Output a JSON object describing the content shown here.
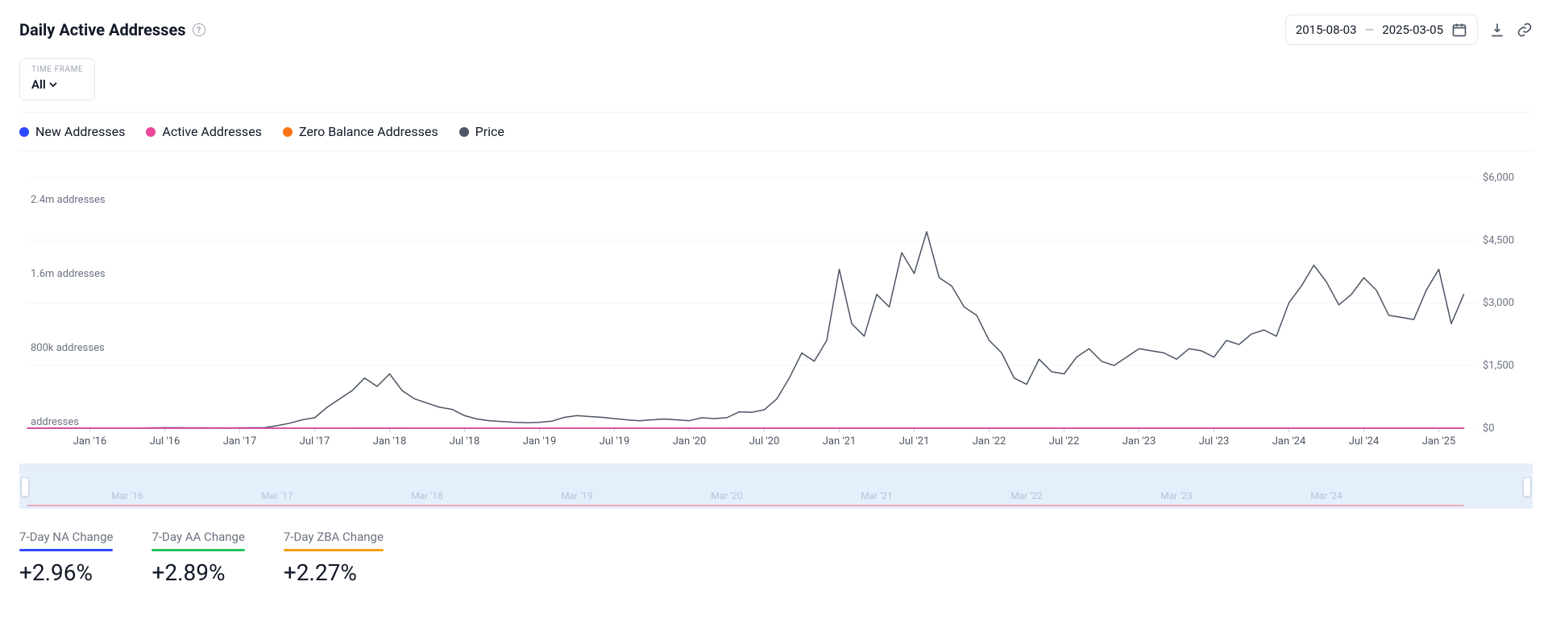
{
  "header": {
    "title": "Daily Active Addresses",
    "date_start": "2015-08-03",
    "date_end": "2025-03-05"
  },
  "timeframe": {
    "label": "TIME FRAME",
    "value": "All"
  },
  "legend": [
    {
      "label": "New Addresses",
      "color": "#2e49ff"
    },
    {
      "label": "Active Addresses",
      "color": "#ec4899"
    },
    {
      "label": "Zero Balance Addresses",
      "color": "#f97316"
    },
    {
      "label": "Price",
      "color": "#4b5563"
    }
  ],
  "chart": {
    "grid_color": "#f3f4f6",
    "axis_color": "#6b7280",
    "x_domain": [
      0,
      116
    ],
    "y_left": {
      "min": 0,
      "max": 2800000,
      "ticks": [
        {
          "v": 0,
          "label": "addresses"
        },
        {
          "v": 800000,
          "label": "800k addresses"
        },
        {
          "v": 1600000,
          "label": "1.6m addresses"
        },
        {
          "v": 2400000,
          "label": "2.4m addresses"
        }
      ]
    },
    "y_right": {
      "min": 0,
      "max": 6200,
      "ticks": [
        {
          "v": 0,
          "label": "$0"
        },
        {
          "v": 1500,
          "label": "$1,500"
        },
        {
          "v": 3000,
          "label": "$3,000"
        },
        {
          "v": 4500,
          "label": "$4,500"
        },
        {
          "v": 6000,
          "label": "$6,000"
        }
      ]
    },
    "x_ticks": [
      {
        "i": 5,
        "label": "Jan '16"
      },
      {
        "i": 11,
        "label": "Jul '16"
      },
      {
        "i": 17,
        "label": "Jan '17"
      },
      {
        "i": 23,
        "label": "Jul '17"
      },
      {
        "i": 29,
        "label": "Jan '18"
      },
      {
        "i": 35,
        "label": "Jul '18"
      },
      {
        "i": 41,
        "label": "Jan '19"
      },
      {
        "i": 47,
        "label": "Jul '19"
      },
      {
        "i": 53,
        "label": "Jan '20"
      },
      {
        "i": 59,
        "label": "Jul '20"
      },
      {
        "i": 65,
        "label": "Jan '21"
      },
      {
        "i": 71,
        "label": "Jul '21"
      },
      {
        "i": 77,
        "label": "Jan '22"
      },
      {
        "i": 83,
        "label": "Jul '22"
      },
      {
        "i": 89,
        "label": "Jan '23"
      },
      {
        "i": 95,
        "label": "Jul '23"
      },
      {
        "i": 101,
        "label": "Jan '24"
      },
      {
        "i": 107,
        "label": "Jul '24"
      },
      {
        "i": 113,
        "label": "Jan '25"
      }
    ],
    "brush_ticks": [
      {
        "i": 8,
        "label": "Mar '16"
      },
      {
        "i": 20,
        "label": "Mar '17"
      },
      {
        "i": 32,
        "label": "Mar '18"
      },
      {
        "i": 44,
        "label": "Mar '19"
      },
      {
        "i": 56,
        "label": "Mar '20"
      },
      {
        "i": 68,
        "label": "Mar '21"
      },
      {
        "i": 80,
        "label": "Mar '22"
      },
      {
        "i": 92,
        "label": "Mar '23"
      },
      {
        "i": 104,
        "label": "Mar '24"
      }
    ],
    "series": {
      "price": {
        "color": "#4b5563",
        "width": 1.5,
        "axis": "right",
        "data": [
          0,
          1,
          1,
          1,
          1,
          1,
          1,
          1,
          1,
          5,
          10,
          12,
          11,
          10,
          10,
          8,
          8,
          10,
          12,
          16,
          60,
          120,
          200,
          250,
          500,
          700,
          900,
          1200,
          1000,
          1300,
          900,
          700,
          600,
          500,
          450,
          300,
          220,
          180,
          160,
          140,
          130,
          140,
          170,
          260,
          300,
          280,
          260,
          230,
          200,
          180,
          200,
          220,
          200,
          180,
          250,
          230,
          250,
          390,
          380,
          440,
          700,
          1200,
          1800,
          1600,
          2100,
          3800,
          2500,
          2200,
          3200,
          2900,
          4200,
          3700,
          4700,
          3600,
          3400,
          2900,
          2700,
          2100,
          1800,
          1200,
          1050,
          1650,
          1350,
          1300,
          1700,
          1900,
          1600,
          1500,
          1700,
          1900,
          1850,
          1800,
          1650,
          1900,
          1850,
          1700,
          2100,
          2000,
          2250,
          2350,
          2200,
          3000,
          3400,
          3900,
          3500,
          2950,
          3200,
          3600,
          3300,
          2700,
          2650,
          2600,
          3300,
          3800,
          2500,
          3200
        ]
      },
      "active": {
        "color": "#ec4899",
        "width": 1.5,
        "axis": "left",
        "data": [
          5,
          8,
          8,
          10,
          10,
          12,
          12,
          14,
          16,
          18,
          20,
          20,
          22,
          22,
          24,
          24,
          30,
          34,
          38,
          44,
          50,
          70,
          120,
          200,
          260,
          300,
          380,
          550,
          650,
          500,
          440,
          380,
          360,
          320,
          320,
          280,
          260,
          260,
          280,
          280,
          280,
          300,
          320,
          340,
          380,
          400,
          380,
          380,
          360,
          350,
          350,
          360,
          360,
          340,
          400,
          380,
          420,
          500,
          550,
          600,
          600,
          700,
          780,
          780,
          800,
          950,
          900,
          920,
          900,
          880,
          920,
          900,
          960,
          900,
          880,
          860,
          840,
          820,
          820,
          760,
          760,
          820,
          780,
          780,
          800,
          820,
          800,
          800,
          820,
          830,
          830,
          820,
          820,
          830,
          830,
          820,
          860,
          870,
          890,
          900,
          880,
          920,
          930,
          960,
          950,
          920,
          940,
          960,
          950,
          900,
          900,
          900,
          960,
          980,
          920,
          1000
        ]
      },
      "new": {
        "color": "#2e49ff",
        "width": 1.5,
        "axis": "left",
        "data": [
          2,
          3,
          3,
          3,
          3,
          4,
          4,
          4,
          5,
          5,
          6,
          6,
          7,
          7,
          8,
          8,
          10,
          12,
          14,
          16,
          20,
          30,
          50,
          80,
          120,
          150,
          200,
          250,
          320,
          250,
          200,
          180,
          160,
          150,
          150,
          120,
          110,
          110,
          120,
          120,
          120,
          130,
          140,
          150,
          170,
          180,
          170,
          170,
          160,
          150,
          150,
          160,
          160,
          150,
          180,
          170,
          180,
          220,
          230,
          250,
          250,
          300,
          360,
          360,
          380,
          300,
          280,
          290,
          280,
          260,
          280,
          260,
          300,
          270,
          260,
          250,
          240,
          230,
          230,
          220,
          220,
          240,
          230,
          220,
          230,
          230,
          225,
          225,
          230,
          232,
          232,
          228,
          228,
          232,
          232,
          228,
          240,
          245,
          250,
          255,
          248,
          260,
          262,
          272,
          265,
          252,
          258,
          265,
          260,
          250,
          248,
          248,
          268,
          272,
          250,
          290
        ]
      },
      "zero": {
        "color": "#f97316",
        "width": 1.5,
        "axis": "left",
        "data": [
          2,
          3,
          3,
          3,
          3,
          4,
          4,
          4,
          5,
          5,
          6,
          6,
          7,
          2450,
          40,
          1700,
          10,
          12,
          14,
          16,
          20,
          30,
          50,
          80,
          120,
          150,
          200,
          250,
          280,
          220,
          180,
          160,
          150,
          140,
          140,
          110,
          100,
          100,
          110,
          110,
          110,
          120,
          125,
          130,
          150,
          160,
          150,
          150,
          140,
          130,
          130,
          140,
          140,
          130,
          160,
          150,
          160,
          200,
          210,
          225,
          225,
          270,
          320,
          320,
          340,
          350,
          340,
          345,
          335,
          320,
          330,
          320,
          350,
          320,
          310,
          300,
          290,
          280,
          280,
          260,
          260,
          280,
          270,
          260,
          270,
          270,
          265,
          265,
          270,
          272,
          272,
          268,
          268,
          272,
          272,
          268,
          280,
          285,
          290,
          295,
          288,
          300,
          302,
          310,
          304,
          294,
          298,
          305,
          300,
          292,
          290,
          290,
          308,
          312,
          292,
          310
        ]
      }
    }
  },
  "stats": [
    {
      "label": "7-Day NA Change",
      "bar_color": "#2e49ff",
      "value": "+2.96%"
    },
    {
      "label": "7-Day AA Change",
      "bar_color": "#22c55e",
      "value": "+2.89%"
    },
    {
      "label": "7-Day ZBA Change",
      "bar_color": "#f59e0b",
      "value": "+2.27%"
    }
  ]
}
